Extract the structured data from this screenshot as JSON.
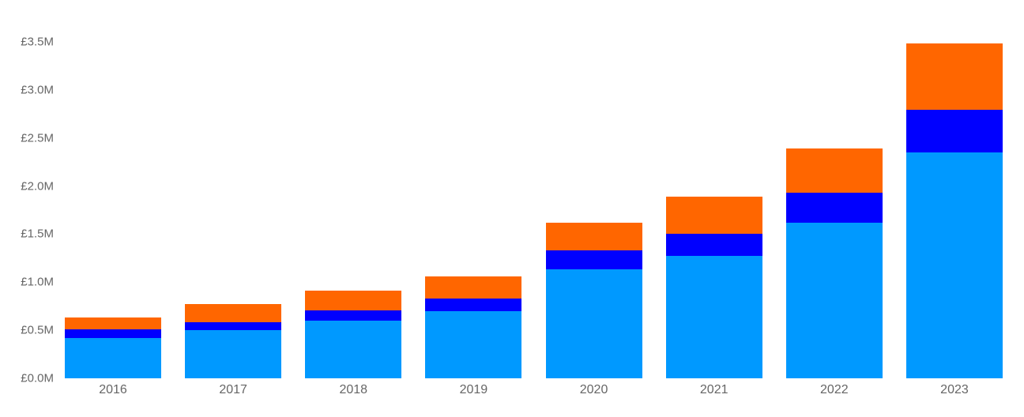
{
  "chart_data": {
    "type": "bar",
    "stacked": true,
    "title": "",
    "xlabel": "",
    "ylabel": "",
    "categories": [
      "2016",
      "2017",
      "2018",
      "2019",
      "2020",
      "2021",
      "2022",
      "2023"
    ],
    "series": [
      {
        "name": "light-blue-bottom",
        "color": "#0099FF",
        "values": [
          0.42,
          0.5,
          0.6,
          0.7,
          1.13,
          1.27,
          1.62,
          2.35
        ]
      },
      {
        "name": "dark-blue-middle",
        "color": "#0000FF",
        "values": [
          0.09,
          0.08,
          0.11,
          0.13,
          0.2,
          0.23,
          0.31,
          0.44
        ]
      },
      {
        "name": "orange-top",
        "color": "#FF6600",
        "values": [
          0.12,
          0.19,
          0.2,
          0.23,
          0.29,
          0.39,
          0.46,
          0.69
        ]
      }
    ],
    "ylim": [
      0,
      3.5
    ],
    "y_tick_interval": 0.5,
    "y_ticks": [
      {
        "value": 0.0,
        "label": "£0.0M"
      },
      {
        "value": 0.5,
        "label": "£0.5M"
      },
      {
        "value": 1.0,
        "label": "£1.0M"
      },
      {
        "value": 1.5,
        "label": "£1.5M"
      },
      {
        "value": 2.0,
        "label": "£2.0M"
      },
      {
        "value": 2.5,
        "label": "£2.5M"
      },
      {
        "value": 3.0,
        "label": "£3.0M"
      },
      {
        "value": 3.5,
        "label": "£3.5M"
      }
    ],
    "grid": false,
    "legend": "none",
    "background": "#FFFFFF",
    "axis_text_color": "#666666"
  }
}
